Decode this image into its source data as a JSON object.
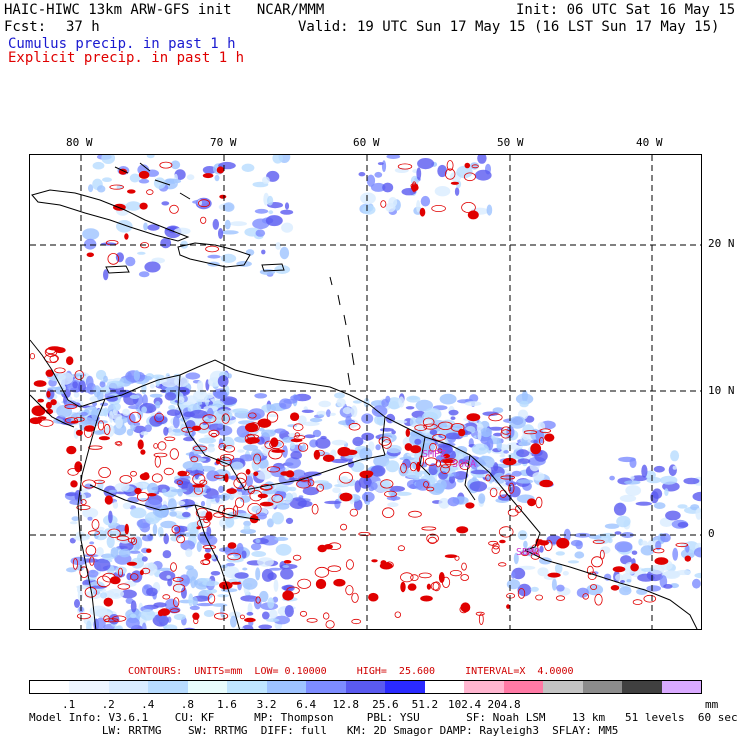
{
  "header": {
    "title": "HAIC-HIWC 13km ARW-GFS init   NCAR/MMM",
    "init": "Init: 06 UTC Sat 16 May 15",
    "fcst_label": "Fcst:",
    "fcst_value": "37 h",
    "valid": "Valid: 19 UTC Sun 17 May 15 (16 LST Sun 17 May 15)",
    "cumulus_label": "Cumulus precip. in past 1 h",
    "explicit_label": "Explicit precip. in past 1 h"
  },
  "map": {
    "lon_labels": [
      "80 W",
      "70 W",
      "60 W",
      "50 W",
      "40 W"
    ],
    "lat_labels": [
      "20 N",
      "10 N",
      "0"
    ],
    "place_labels": [
      "SMPZ",
      "SOCA",
      "SBMQ"
    ],
    "colors": {
      "coast": "#000000",
      "grid": "#000000",
      "explicit": "#e00000",
      "label": "#cc33cc"
    }
  },
  "contour_info": {
    "text": "CONTOURS:  UNITS=mm  LOW= 0.10000     HIGH=  25.600     INTERVAL=X  4.0000"
  },
  "colorbar": {
    "colors": [
      "#ffffff",
      "#eef6ff",
      "#d9ecff",
      "#b8dcff",
      "#e8fdfd",
      "#bfe6ff",
      "#9ec3ff",
      "#7d8cff",
      "#5a5af0",
      "#2a2aff",
      "#ffffff",
      "#ffb6d0",
      "#ff7aa5",
      "#c4c4c4",
      "#8c8c8c",
      "#404040",
      "#d9aaff"
    ],
    "ticks": [
      ".1",
      ".2",
      ".4",
      ".8",
      "1.6",
      "3.2",
      "6.4",
      "12.8",
      "25.6",
      "51.2",
      "102.4",
      "204.8"
    ],
    "unit": "mm"
  },
  "model_info": {
    "line1": "Model Info: V3.6.1    CU: KF      MP: Thompson     PBL: YSU       SF: Noah LSM    13 km   51 levels  60 sec",
    "line2": "           LW: RRTMG    SW: RRTMG  DIFF: full   KM: 2D Smagor DAMP: Rayleigh3  SFLAY: MM5"
  }
}
